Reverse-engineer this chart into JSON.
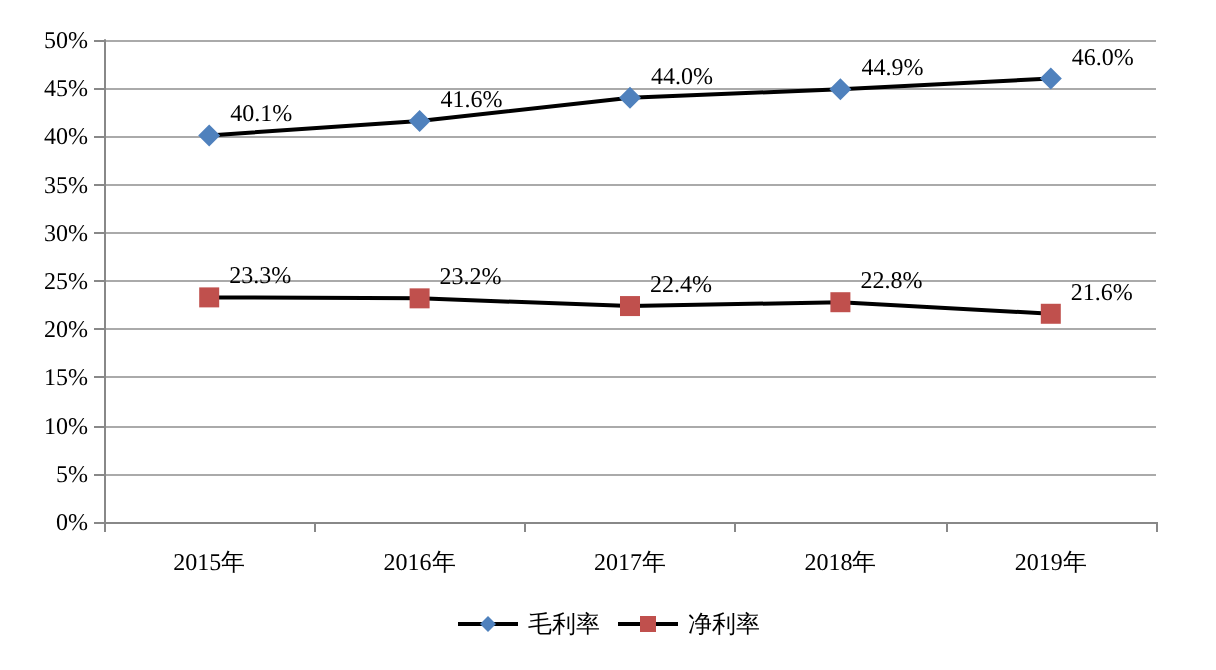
{
  "chart_data": {
    "type": "line",
    "categories": [
      "2015年",
      "2016年",
      "2017年",
      "2018年",
      "2019年"
    ],
    "series": [
      {
        "name": "毛利率",
        "color": "#4f81bd",
        "marker": "diamond",
        "values": [
          40.1,
          41.6,
          44.0,
          44.9,
          46.0
        ],
        "value_labels": [
          "40.1%",
          "41.6%",
          "44.0%",
          "44.9%",
          "46.0%"
        ]
      },
      {
        "name": "净利率",
        "color": "#c0504d",
        "marker": "square",
        "values": [
          23.3,
          23.2,
          22.4,
          22.8,
          21.6
        ],
        "value_labels": [
          "23.3%",
          "23.2%",
          "22.4%",
          "22.8%",
          "21.6%"
        ]
      }
    ],
    "ylim": [
      0,
      50
    ],
    "yticks": [
      {
        "value": 0,
        "label": "0%"
      },
      {
        "value": 5,
        "label": "5%"
      },
      {
        "value": 10,
        "label": "10%"
      },
      {
        "value": 15,
        "label": "15%"
      },
      {
        "value": 20,
        "label": "20%"
      },
      {
        "value": 25,
        "label": "25%"
      },
      {
        "value": 30,
        "label": "30%"
      },
      {
        "value": 35,
        "label": "35%"
      },
      {
        "value": 40,
        "label": "40%"
      },
      {
        "value": 45,
        "label": "45%"
      },
      {
        "value": 50,
        "label": "50%"
      }
    ],
    "grid": "y",
    "legend": "bottom",
    "line_style": "solid"
  }
}
